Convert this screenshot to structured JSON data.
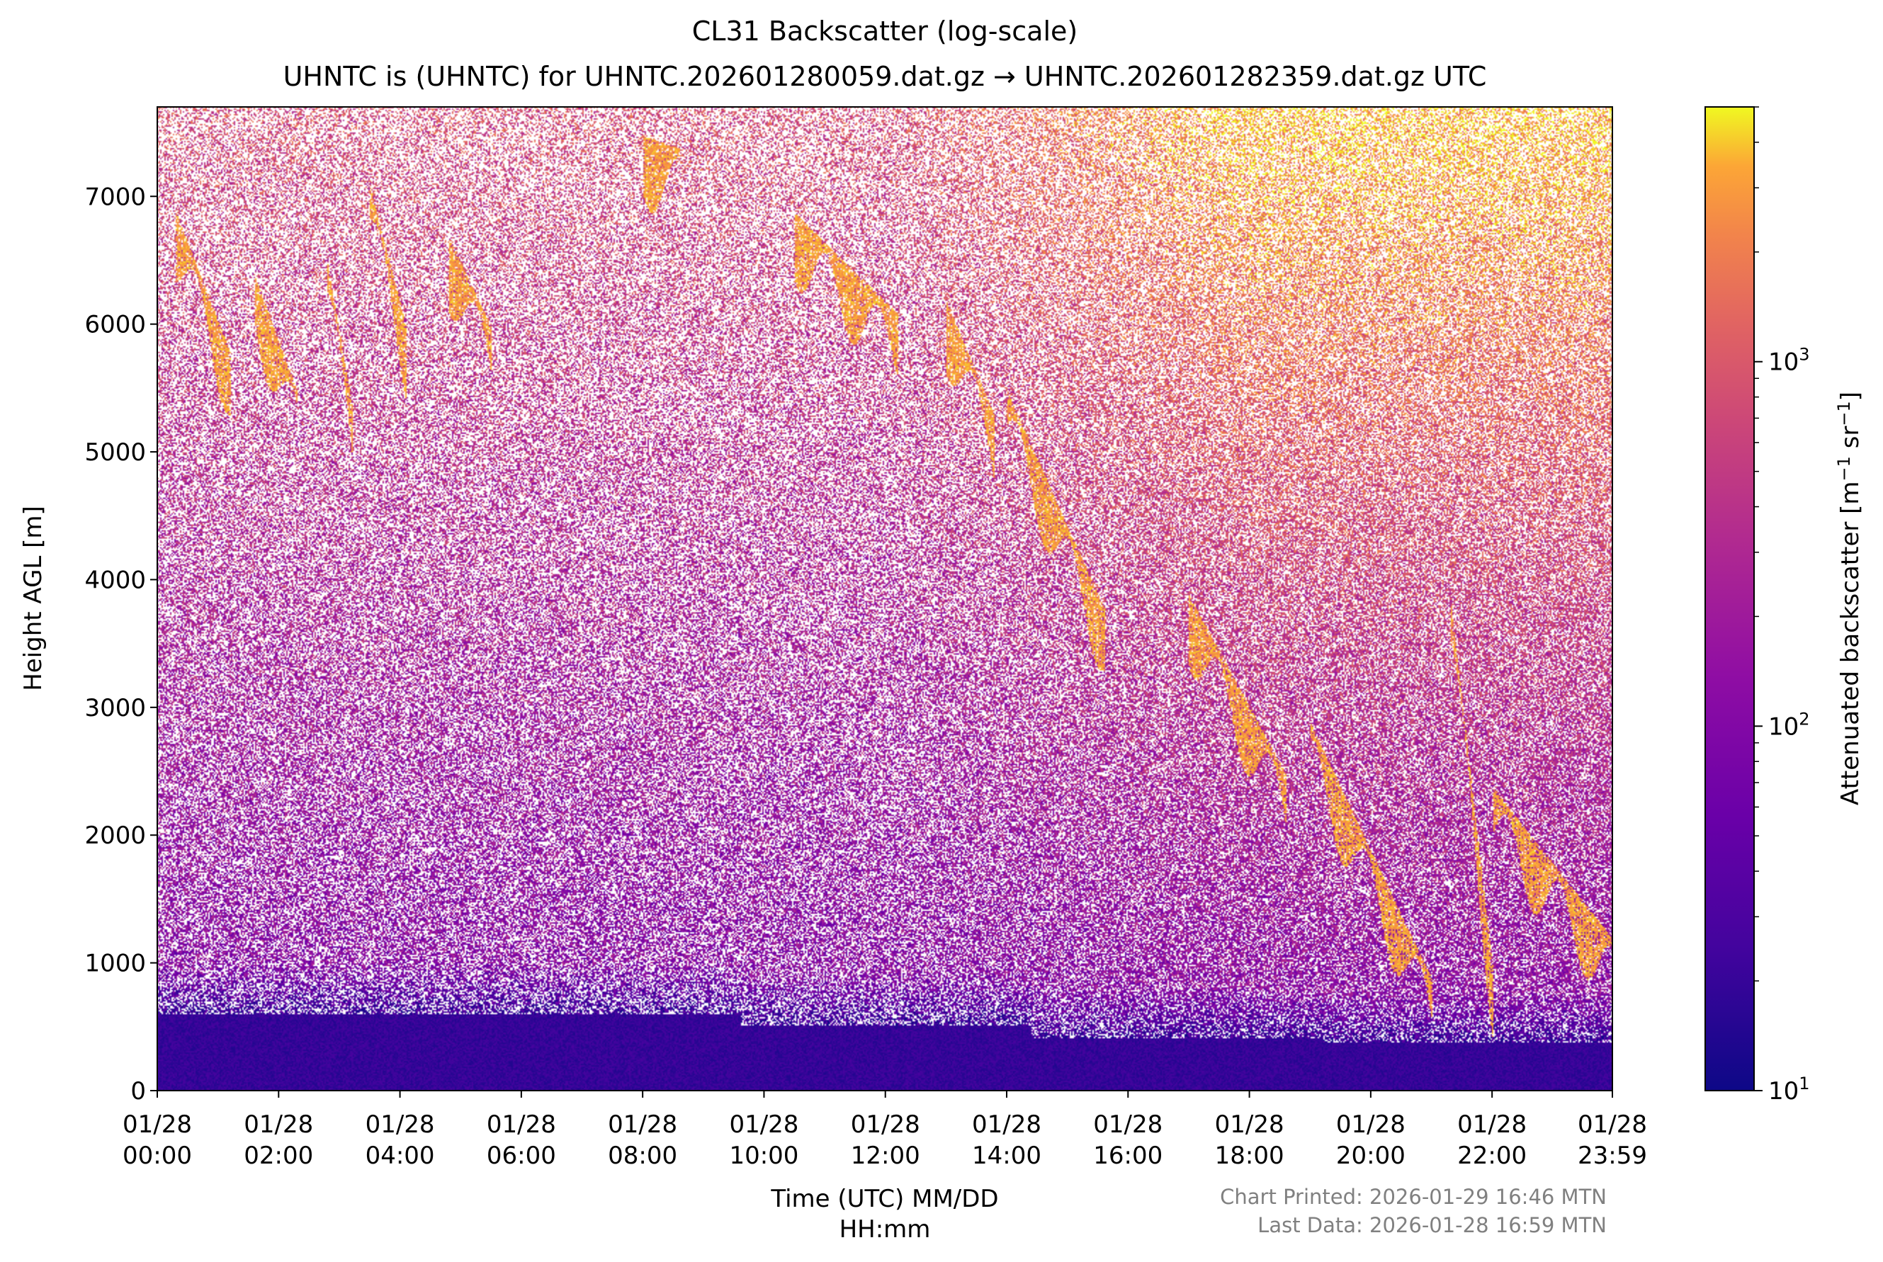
{
  "chart_data": {
    "type": "heatmap",
    "title": "CL31 Backscatter (log-scale)",
    "subtitle": "UHNTC is (UHNTC) for UHNTC.202601280059.dat.gz → UHNTC.202601282359.dat.gz UTC",
    "xlabel_line1": "Time (UTC) MM/DD",
    "xlabel_line2": "HH:mm",
    "ylabel": "Height AGL [m]",
    "colorbar_label": "Attenuated backscatter [m",
    "colorbar_label_sup1": "−1",
    "colorbar_label_mid": " sr",
    "colorbar_label_sup2": "−1",
    "colorbar_label_end": "]",
    "x_range_hours": [
      0,
      23.983
    ],
    "ylim": [
      0,
      7700
    ],
    "x_ticks": [
      {
        "hour": 0,
        "date": "01/28",
        "time": "00:00"
      },
      {
        "hour": 2,
        "date": "01/28",
        "time": "02:00"
      },
      {
        "hour": 4,
        "date": "01/28",
        "time": "04:00"
      },
      {
        "hour": 6,
        "date": "01/28",
        "time": "06:00"
      },
      {
        "hour": 8,
        "date": "01/28",
        "time": "08:00"
      },
      {
        "hour": 10,
        "date": "01/28",
        "time": "10:00"
      },
      {
        "hour": 12,
        "date": "01/28",
        "time": "12:00"
      },
      {
        "hour": 14,
        "date": "01/28",
        "time": "14:00"
      },
      {
        "hour": 16,
        "date": "01/28",
        "time": "16:00"
      },
      {
        "hour": 18,
        "date": "01/28",
        "time": "18:00"
      },
      {
        "hour": 20,
        "date": "01/28",
        "time": "20:00"
      },
      {
        "hour": 22,
        "date": "01/28",
        "time": "22:00"
      },
      {
        "hour": 23.983,
        "date": "01/28",
        "time": "23:59"
      }
    ],
    "y_ticks": [
      0,
      1000,
      2000,
      3000,
      4000,
      5000,
      6000,
      7000
    ],
    "colorbar": {
      "scale": "log",
      "colormap": "plasma",
      "range": [
        10,
        5000
      ],
      "ticks": [
        {
          "value": 10,
          "base": "10",
          "exp": "1"
        },
        {
          "value": 100,
          "base": "10",
          "exp": "2"
        },
        {
          "value": 1000,
          "base": "10",
          "exp": "3"
        }
      ]
    },
    "cloud_layers": [
      {
        "hours": [
          0.3,
          1.2
        ],
        "heights_m": [
          6800,
          5700
        ]
      },
      {
        "hours": [
          1.6,
          2.3
        ],
        "heights_m": [
          6300,
          5400
        ]
      },
      {
        "hours": [
          2.8,
          3.2
        ],
        "heights_m": [
          6400,
          5300
        ]
      },
      {
        "hours": [
          3.5,
          4.1
        ],
        "heights_m": [
          7000,
          5900
        ]
      },
      {
        "hours": [
          4.8,
          5.5
        ],
        "heights_m": [
          6600,
          5900
        ]
      },
      {
        "hours": [
          8.0,
          8.6
        ],
        "heights_m": [
          7400,
          7300
        ]
      },
      {
        "hours": [
          10.5,
          12.2
        ],
        "heights_m": [
          6800,
          6000
        ]
      },
      {
        "hours": [
          13.0,
          13.8
        ],
        "heights_m": [
          6100,
          5200
        ]
      },
      {
        "hours": [
          14.0,
          15.6
        ],
        "heights_m": [
          5400,
          3700
        ]
      },
      {
        "hours": [
          17.0,
          18.6
        ],
        "heights_m": [
          3800,
          2400
        ]
      },
      {
        "hours": [
          19.0,
          21.0
        ],
        "heights_m": [
          2800,
          800
        ]
      },
      {
        "hours": [
          21.3,
          22.0
        ],
        "heights_m": [
          3800,
          900
        ]
      },
      {
        "hours": [
          22.0,
          24.0
        ],
        "heights_m": [
          2300,
          1100
        ]
      }
    ],
    "boundary_layer_top_m": [
      600,
      600,
      520,
      420,
      380
    ]
  },
  "footer": {
    "printed": "Chart Printed: 2026-01-29 16:46 MTN",
    "last_data": "Last Data: 2026-01-28 16:59 MTN"
  }
}
